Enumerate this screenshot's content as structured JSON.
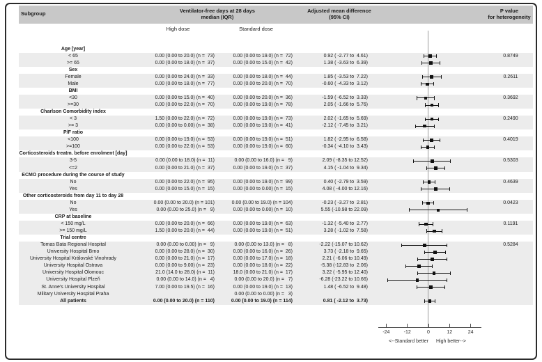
{
  "header": {
    "subgroup": "Subgroup",
    "vfd1": "Ventilator-free days at 28 days",
    "vfd2": "median (IQR)",
    "amd1": "Adjusted mean difference",
    "amd2": "(95% CI)",
    "p1": "P value",
    "p2": "for heterogeneity"
  },
  "subheader": {
    "high_dose": "High dose",
    "standard_dose": "Standard dose"
  },
  "axis": {
    "ticks": [
      -24,
      -12,
      0,
      12,
      24
    ],
    "left_direction_label": "<--Standard better",
    "right_direction_label": "High better-->"
  },
  "colors": {
    "header_bg": "#c8c8c8",
    "stripe_bg": "#ececec",
    "zero_line": "#9a9a9a",
    "axis_line": "#4d4d4d",
    "marker": "#111111",
    "text": "#1a1a1a"
  },
  "rows": [
    {
      "label": "Age [year]",
      "bold": true,
      "stripe": false,
      "high": "",
      "std": "",
      "amd": "",
      "p": "",
      "ci": null
    },
    {
      "label": "< 65",
      "bold": false,
      "stripe": true,
      "high": "0.00 (0.00 to 20.0) (n =  73)",
      "std": "0.00 (0.00 to 19.0) (n =  72)",
      "amd": "0.92 ( -2.77 to  4.61)",
      "p": "0.8749",
      "ci": [
        -2.77,
        0.92,
        4.61
      ]
    },
    {
      "label": ">= 65",
      "bold": false,
      "stripe": true,
      "high": "0.00 (0.00 to 18.0) (n =  37)",
      "std": "0.00 (0.00 to 15.0) (n =  42)",
      "amd": "1.38 ( -3.63 to  6.39)",
      "p": "",
      "ci": [
        -3.63,
        1.38,
        6.39
      ]
    },
    {
      "label": "Sex",
      "bold": true,
      "stripe": false,
      "high": "",
      "std": "",
      "amd": "",
      "p": "",
      "ci": null
    },
    {
      "label": "Female",
      "bold": false,
      "stripe": true,
      "high": "0.00 (0.00 to 24.0) (n =  33)",
      "std": "0.00 (0.00 to 18.0) (n =  44)",
      "amd": "1.85 ( -3.53 to  7.22)",
      "p": "0.2611",
      "ci": [
        -3.53,
        1.85,
        7.22
      ]
    },
    {
      "label": "Male",
      "bold": false,
      "stripe": true,
      "high": "0.00 (0.00 to 18.0) (n =  77)",
      "std": "0.00 (0.00 to 20.0) (n =  70)",
      "amd": "-0.60 ( -4.33 to  3.12)",
      "p": "",
      "ci": [
        -4.33,
        -0.6,
        3.12
      ]
    },
    {
      "label": "BMI",
      "bold": true,
      "stripe": false,
      "high": "",
      "std": "",
      "amd": "",
      "p": "",
      "ci": null
    },
    {
      "label": "<30",
      "bold": false,
      "stripe": true,
      "high": "0.00 (0.00 to 15.0) (n =  40)",
      "std": "0.00 (0.00 to 20.0) (n =  36)",
      "amd": "-1.59 ( -6.52 to  3.33)",
      "p": "0.3692",
      "ci": [
        -6.52,
        -1.59,
        3.33
      ]
    },
    {
      "label": ">=30",
      "bold": false,
      "stripe": true,
      "high": "0.00 (0.00 to 22.0) (n =  70)",
      "std": "0.00 (0.00 to 19.0) (n =  78)",
      "amd": "2.05 ( -1.66 to  5.76)",
      "p": "",
      "ci": [
        -1.66,
        2.05,
        5.76
      ]
    },
    {
      "label": "Charlson Comorbidity index",
      "bold": true,
      "stripe": false,
      "high": "",
      "std": "",
      "amd": "",
      "p": "",
      "ci": null
    },
    {
      "label": "< 3",
      "bold": false,
      "stripe": true,
      "high": "1.50 (0.00 to 22.0) (n =  72)",
      "std": "0.00 (0.00 to 19.0) (n =  73)",
      "amd": "2.02 ( -1.65 to  5.69)",
      "p": "0.2490",
      "ci": [
        -1.65,
        2.02,
        5.69
      ]
    },
    {
      "label": ">= 3",
      "bold": false,
      "stripe": true,
      "high": "0.00 (0.00 to 0.00) (n =  38)",
      "std": "0.00 (0.00 to 19.0) (n =  41)",
      "amd": "-2.12 ( -7.45 to  3.21)",
      "p": "",
      "ci": [
        -7.45,
        -2.12,
        3.21
      ]
    },
    {
      "label": "P/F ratio",
      "bold": true,
      "stripe": false,
      "high": "",
      "std": "",
      "amd": "",
      "p": "",
      "ci": null
    },
    {
      "label": "<100",
      "bold": false,
      "stripe": true,
      "high": "0.00 (0.00 to 19.0) (n =  53)",
      "std": "0.00 (0.00 to 19.0) (n =  51)",
      "amd": "1.82 ( -2.95 to  6.58)",
      "p": "0.4019",
      "ci": [
        -2.95,
        1.82,
        6.58
      ]
    },
    {
      "label": ">=100",
      "bold": false,
      "stripe": true,
      "high": "0.00 (0.00 to 22.0) (n =  53)",
      "std": "0.00 (0.00 to 19.0) (n =  60)",
      "amd": "-0.34 ( -4.10 to  3.43)",
      "p": "",
      "ci": [
        -4.1,
        -0.34,
        3.43
      ]
    },
    {
      "label": "Corticosteroids treatm. before enrolment [day]",
      "bold": true,
      "stripe": false,
      "high": "",
      "std": "",
      "amd": "",
      "p": "",
      "ci": null
    },
    {
      "label": "3-5",
      "bold": false,
      "stripe": true,
      "high": "0.00 (0.00 to 18.0) (n =  11)",
      "std": "0.00 (0.00 to 16.0) (n =   9)",
      "amd": "2.09 ( -8.35 to 12.52)",
      "p": "0.5303",
      "ci": [
        -8.35,
        2.09,
        12.52
      ]
    },
    {
      "label": "<=2",
      "bold": false,
      "stripe": true,
      "high": "0.00 (0.00 to 21.0) (n =  37)",
      "std": "0.00 (0.00 to 19.0) (n =  37)",
      "amd": "4.15 ( -1.04 to  9.34)",
      "p": "",
      "ci": [
        -1.04,
        4.15,
        9.34
      ]
    },
    {
      "label": "ECMO procedure during the course of study",
      "bold": true,
      "stripe": false,
      "high": "",
      "std": "",
      "amd": "",
      "p": "",
      "ci": null
    },
    {
      "label": "No",
      "bold": false,
      "stripe": true,
      "high": "0.00 (0.00 to 22.0) (n =  95)",
      "std": "0.00 (0.00 to 19.0) (n =  99)",
      "amd": "0.40 ( -2.79 to  3.59)",
      "p": "0.4639",
      "ci": [
        -2.79,
        0.4,
        3.59
      ]
    },
    {
      "label": "Yes",
      "bold": false,
      "stripe": true,
      "high": "0.00 (0.00 to 15.0) (n =  15)",
      "std": "0.00 (0.00 to 0.00) (n =  15)",
      "amd": "4.08 ( -4.00 to 12.16)",
      "p": "",
      "ci": [
        -4.0,
        4.08,
        12.16
      ]
    },
    {
      "label": "Other corticosteroids from day 11 to day 28",
      "bold": true,
      "stripe": false,
      "high": "",
      "std": "",
      "amd": "",
      "p": "",
      "ci": null
    },
    {
      "label": "No",
      "bold": false,
      "stripe": true,
      "high": "0.00 (0.00 to 20.0) (n = 101)",
      "std": "0.00 (0.00 to 19.0) (n = 104)",
      "amd": "-0.23 ( -3.27 to  2.81)",
      "p": "0.0423",
      "ci": [
        -3.27,
        -0.23,
        2.81
      ]
    },
    {
      "label": "Yes",
      "bold": false,
      "stripe": true,
      "high": "0.00 (0.00 to 25.0) (n =   9)",
      "std": "0.00 (0.00 to 0.00) (n =  10)",
      "amd": "5.55 (-10.98 to 22.09)",
      "p": "",
      "ci": [
        -10.98,
        5.55,
        22.09
      ]
    },
    {
      "label": "CRP at baseline",
      "bold": true,
      "stripe": false,
      "high": "",
      "std": "",
      "amd": "",
      "p": "",
      "ci": null
    },
    {
      "label": "< 150 mg/L",
      "bold": false,
      "stripe": true,
      "high": "0.00 (0.00 to 20.0) (n =  66)",
      "std": "0.00 (0.00 to 19.0) (n =  63)",
      "amd": "-1.32 ( -5.40 to  2.77)",
      "p": "0.1191",
      "ci": [
        -5.4,
        -1.32,
        2.77
      ]
    },
    {
      "label": ">= 150 mg/L",
      "bold": false,
      "stripe": true,
      "high": "1.50 (0.00 to 20.0) (n =  44)",
      "std": "0.00 (0.00 to 19.0) (n =  51)",
      "amd": "3.28 ( -1.02 to  7.58)",
      "p": "",
      "ci": [
        -1.02,
        3.28,
        7.58
      ]
    },
    {
      "label": "Trial centre",
      "bold": true,
      "stripe": false,
      "high": "",
      "std": "",
      "amd": "",
      "p": "",
      "ci": null
    },
    {
      "label": "Tomas Bata Regional Hospital",
      "bold": false,
      "stripe": true,
      "high": "0.00 (0.00 to 0.00) (n =   9)",
      "std": "0.00 (0.00 to 13.0) (n =   8)",
      "amd": "-2.22 (-15.07 to 10.62)",
      "p": "0.5284",
      "ci": [
        -15.07,
        -2.22,
        10.62
      ]
    },
    {
      "label": "University Hospital Brno",
      "bold": false,
      "stripe": true,
      "high": "0.00 (0.00 to 28.0) (n =  30)",
      "std": "0.00 (0.00 to 16.0) (n =  26)",
      "amd": "3.73 ( -2.18 to  9.65)",
      "p": "",
      "ci": [
        -2.18,
        3.73,
        9.65
      ]
    },
    {
      "label": "University Hospital Královské Vinohrady",
      "bold": false,
      "stripe": true,
      "high": "0.00 (0.00 to 21.0) (n =  17)",
      "std": "0.00 (0.00 to 17.0) (n =  18)",
      "amd": "2.21 ( -6.06 to 10.49)",
      "p": "",
      "ci": [
        -6.06,
        2.21,
        10.49
      ]
    },
    {
      "label": "University Hospital Ostrava",
      "bold": false,
      "stripe": true,
      "high": "0.00 (0.00 to 9.00) (n =  23)",
      "std": "0.00 (0.00 to 18.0) (n =  22)",
      "amd": "-5.38 (-12.83 to  2.06)",
      "p": "",
      "ci": [
        -12.83,
        -5.38,
        2.06
      ]
    },
    {
      "label": "University Hospital Olomouc",
      "bold": false,
      "stripe": true,
      "high": "21.0 (14.0 to 28.0) (n =  11)",
      "std": "18.0 (0.00 to 21.0) (n =  17)",
      "amd": "3.22 ( -5.95 to 12.40)",
      "p": "",
      "ci": [
        -5.95,
        3.22,
        12.4
      ]
    },
    {
      "label": "University Hospital Plzeň",
      "bold": false,
      "stripe": true,
      "high": "0.00 (0.00 to 14.0) (n =   4)",
      "std": "0.00 (0.00 to 20.0) (n =   7)",
      "amd": "-6.28 (-23.22 to 10.66)",
      "p": "",
      "ci": [
        -23.22,
        -6.28,
        10.66
      ]
    },
    {
      "label": "St. Anne's University Hospital",
      "bold": false,
      "stripe": true,
      "high": "7.00 (0.00 to 19.5) (n =  16)",
      "std": "0.00 (0.00 to 19.0) (n =  13)",
      "amd": "1.48 ( -6.52 to  9.48)",
      "p": "",
      "ci": [
        -6.52,
        1.48,
        9.48
      ]
    },
    {
      "label": "Military University Hospital Praha",
      "bold": false,
      "stripe": true,
      "high": "",
      "std": "0.00 (0.00 to 0.00) (n =   3)",
      "amd": "",
      "p": "",
      "ci": null
    },
    {
      "label": "All patients",
      "bold": true,
      "stripe": true,
      "high": "0.00 (0.00 to 20.0) (n = 110)",
      "std": "0.00 (0.00 to 19.0) (n = 114)",
      "amd": "0.81 ( -2.12 to  3.73)",
      "p": "",
      "ci": [
        -2.12,
        0.81,
        3.73
      ]
    }
  ],
  "chart_data": {
    "type": "scatter",
    "variant": "forest-plot",
    "xlabel": "Adjusted mean difference (95% CI)",
    "xticks": [
      -24,
      -12,
      0,
      12,
      24
    ],
    "xlim": [
      -26,
      28
    ],
    "reference_line": 0,
    "direction_labels": {
      "left": "<--Standard better",
      "right": "High better-->"
    },
    "groups": [
      {
        "name": "Age [year]",
        "p_heterogeneity": 0.8749
      },
      {
        "name": "Sex",
        "p_heterogeneity": 0.2611
      },
      {
        "name": "BMI",
        "p_heterogeneity": 0.3692
      },
      {
        "name": "Charlson Comorbidity index",
        "p_heterogeneity": 0.249
      },
      {
        "name": "P/F ratio",
        "p_heterogeneity": 0.4019
      },
      {
        "name": "Corticosteroids treatm. before enrolment [day]",
        "p_heterogeneity": 0.5303
      },
      {
        "name": "ECMO procedure during the course of study",
        "p_heterogeneity": 0.4639
      },
      {
        "name": "Other corticosteroids from day 11 to day 28",
        "p_heterogeneity": 0.0423
      },
      {
        "name": "CRP at baseline",
        "p_heterogeneity": 0.1191
      },
      {
        "name": "Trial centre",
        "p_heterogeneity": 0.5284
      }
    ],
    "points": [
      {
        "label": "< 65",
        "est": 0.92,
        "lo": -2.77,
        "hi": 4.61
      },
      {
        "label": ">= 65",
        "est": 1.38,
        "lo": -3.63,
        "hi": 6.39
      },
      {
        "label": "Female",
        "est": 1.85,
        "lo": -3.53,
        "hi": 7.22
      },
      {
        "label": "Male",
        "est": -0.6,
        "lo": -4.33,
        "hi": 3.12
      },
      {
        "label": "<30",
        "est": -1.59,
        "lo": -6.52,
        "hi": 3.33
      },
      {
        "label": ">=30",
        "est": 2.05,
        "lo": -1.66,
        "hi": 5.76
      },
      {
        "label": "< 3",
        "est": 2.02,
        "lo": -1.65,
        "hi": 5.69
      },
      {
        "label": ">= 3",
        "est": -2.12,
        "lo": -7.45,
        "hi": 3.21
      },
      {
        "label": "<100",
        "est": 1.82,
        "lo": -2.95,
        "hi": 6.58
      },
      {
        "label": ">=100",
        "est": -0.34,
        "lo": -4.1,
        "hi": 3.43
      },
      {
        "label": "3-5",
        "est": 2.09,
        "lo": -8.35,
        "hi": 12.52
      },
      {
        "label": "<=2",
        "est": 4.15,
        "lo": -1.04,
        "hi": 9.34
      },
      {
        "label": "ECMO No",
        "est": 0.4,
        "lo": -2.79,
        "hi": 3.59
      },
      {
        "label": "ECMO Yes",
        "est": 4.08,
        "lo": -4.0,
        "hi": 12.16
      },
      {
        "label": "Other corticosteroids No",
        "est": -0.23,
        "lo": -3.27,
        "hi": 2.81
      },
      {
        "label": "Other corticosteroids Yes",
        "est": 5.55,
        "lo": -10.98,
        "hi": 22.09
      },
      {
        "label": "< 150 mg/L",
        "est": -1.32,
        "lo": -5.4,
        "hi": 2.77
      },
      {
        "label": ">= 150 mg/L",
        "est": 3.28,
        "lo": -1.02,
        "hi": 7.58
      },
      {
        "label": "Tomas Bata Regional Hospital",
        "est": -2.22,
        "lo": -15.07,
        "hi": 10.62
      },
      {
        "label": "University Hospital Brno",
        "est": 3.73,
        "lo": -2.18,
        "hi": 9.65
      },
      {
        "label": "University Hospital Královské Vinohrady",
        "est": 2.21,
        "lo": -6.06,
        "hi": 10.49
      },
      {
        "label": "University Hospital Ostrava",
        "est": -5.38,
        "lo": -12.83,
        "hi": 2.06
      },
      {
        "label": "University Hospital Olomouc",
        "est": 3.22,
        "lo": -5.95,
        "hi": 12.4
      },
      {
        "label": "University Hospital Plzeň",
        "est": -6.28,
        "lo": -23.22,
        "hi": 10.66
      },
      {
        "label": "St. Anne's University Hospital",
        "est": 1.48,
        "lo": -6.52,
        "hi": 9.48
      },
      {
        "label": "All patients",
        "est": 0.81,
        "lo": -2.12,
        "hi": 3.73
      }
    ]
  }
}
